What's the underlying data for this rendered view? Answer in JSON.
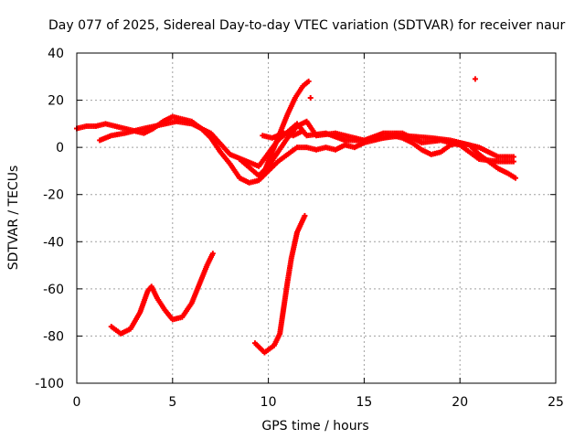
{
  "chart_data": {
    "type": "scatter",
    "title": "Day 077 of 2025, Sidereal Day-to-day VTEC variation (SDTVAR) for receiver naur",
    "xlabel": "GPS time / hours",
    "ylabel": "SDTVAR / TECUs",
    "xlim": [
      0,
      25
    ],
    "ylim": [
      -100,
      40
    ],
    "xticks": [
      0,
      5,
      10,
      15,
      20,
      25
    ],
    "yticks": [
      -100,
      -80,
      -60,
      -40,
      -20,
      0,
      20,
      40
    ],
    "grid": true,
    "marker": "+",
    "color": "#ff0000",
    "series": [
      {
        "name": "main-band-a",
        "points": [
          [
            0,
            8
          ],
          [
            0.5,
            9
          ],
          [
            1,
            9
          ],
          [
            1.5,
            10
          ],
          [
            2,
            9
          ],
          [
            2.5,
            8
          ],
          [
            3,
            7
          ],
          [
            3.5,
            6
          ],
          [
            4,
            8
          ],
          [
            4.5,
            11
          ],
          [
            5,
            13
          ],
          [
            5.5,
            12
          ],
          [
            6,
            11
          ],
          [
            6.5,
            8
          ],
          [
            7,
            4
          ],
          [
            7.5,
            -2
          ],
          [
            8,
            -7
          ],
          [
            8.5,
            -13
          ],
          [
            9,
            -15
          ],
          [
            9.5,
            -14
          ],
          [
            10,
            -10
          ],
          [
            10.5,
            -6
          ],
          [
            11,
            -3
          ],
          [
            11.5,
            0
          ],
          [
            12,
            0
          ],
          [
            12.5,
            -1
          ],
          [
            13,
            0
          ],
          [
            13.5,
            -1
          ],
          [
            14,
            1
          ],
          [
            14.5,
            0
          ],
          [
            15,
            2
          ],
          [
            15.5,
            3
          ],
          [
            16,
            4
          ],
          [
            16.5,
            5
          ],
          [
            17,
            4
          ],
          [
            17.5,
            2
          ],
          [
            18,
            -1
          ],
          [
            18.5,
            -3
          ],
          [
            19,
            -2
          ],
          [
            19.5,
            1
          ],
          [
            20,
            2
          ],
          [
            20.5,
            1
          ],
          [
            21,
            -3
          ],
          [
            21.5,
            -6
          ],
          [
            22,
            -9
          ],
          [
            22.5,
            -11
          ],
          [
            22.9,
            -13
          ]
        ]
      },
      {
        "name": "main-band-b",
        "points": [
          [
            1.2,
            3
          ],
          [
            1.8,
            5
          ],
          [
            2.5,
            6
          ],
          [
            3.5,
            8
          ],
          [
            5.2,
            11
          ],
          [
            6,
            10
          ],
          [
            7,
            6
          ],
          [
            8,
            -3
          ],
          [
            9.5,
            -8
          ],
          [
            10.5,
            3
          ],
          [
            11.5,
            10
          ],
          [
            12,
            5
          ],
          [
            13,
            6
          ],
          [
            14,
            3
          ],
          [
            15,
            3
          ],
          [
            16,
            6
          ],
          [
            17,
            6
          ],
          [
            18,
            2
          ],
          [
            19,
            3
          ],
          [
            20,
            1
          ],
          [
            21,
            -5
          ],
          [
            22,
            -6
          ],
          [
            22.8,
            -6
          ]
        ]
      },
      {
        "name": "main-band-c",
        "points": [
          [
            8.5,
            -5
          ],
          [
            9.5,
            -12
          ],
          [
            10,
            -8
          ],
          [
            10.5,
            -2
          ],
          [
            11,
            4
          ],
          [
            11.5,
            9
          ],
          [
            12,
            11
          ],
          [
            12.5,
            5
          ],
          [
            13.5,
            6
          ],
          [
            15,
            3
          ],
          [
            16,
            4
          ],
          [
            17,
            5
          ],
          [
            18.5,
            4
          ],
          [
            19.5,
            3
          ],
          [
            21,
            0
          ],
          [
            22,
            -4
          ],
          [
            22.8,
            -4
          ]
        ]
      },
      {
        "name": "rising-branch",
        "points": [
          [
            9.5,
            -12
          ],
          [
            9.8,
            -10
          ],
          [
            10.2,
            -2
          ],
          [
            10.6,
            6
          ],
          [
            11,
            14
          ],
          [
            11.4,
            21
          ],
          [
            11.8,
            26
          ],
          [
            12.1,
            28
          ]
        ]
      },
      {
        "name": "upper-dip",
        "points": [
          [
            9.7,
            5
          ],
          [
            10.2,
            4
          ],
          [
            10.8,
            6
          ],
          [
            11.3,
            5
          ],
          [
            11.8,
            7
          ]
        ]
      },
      {
        "name": "lower-arc-1",
        "points": [
          [
            1.8,
            -76
          ],
          [
            2.3,
            -79
          ],
          [
            2.8,
            -77
          ],
          [
            3.3,
            -70
          ],
          [
            3.7,
            -61
          ],
          [
            3.9,
            -59
          ],
          [
            4.2,
            -64
          ],
          [
            4.6,
            -69
          ],
          [
            5,
            -73
          ],
          [
            5.5,
            -72
          ],
          [
            6,
            -66
          ],
          [
            6.5,
            -56
          ],
          [
            6.8,
            -50
          ],
          [
            7.1,
            -45
          ]
        ]
      },
      {
        "name": "lower-arc-2",
        "points": [
          [
            9.3,
            -83
          ],
          [
            9.8,
            -87
          ],
          [
            10.3,
            -84
          ],
          [
            10.6,
            -79
          ],
          [
            10.8,
            -68
          ],
          [
            11,
            -57
          ],
          [
            11.2,
            -47
          ],
          [
            11.5,
            -36
          ],
          [
            11.9,
            -29
          ]
        ]
      },
      {
        "name": "outliers",
        "points": [
          [
            12.2,
            21
          ],
          [
            20.8,
            29
          ]
        ]
      }
    ]
  }
}
